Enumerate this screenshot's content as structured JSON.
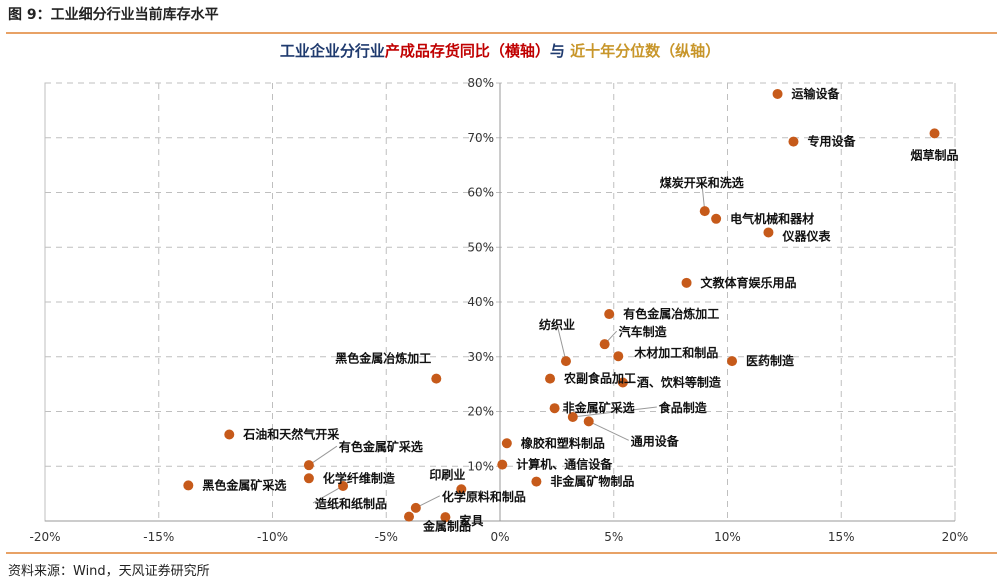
{
  "figure_title": "图 9：工业细分行业当前库存水平",
  "source": "资料来源：Wind，天风证券研究所",
  "colors": {
    "point": "#c65a1a",
    "title_blue": "#1f3a6e",
    "title_red": "#c00000",
    "title_gold": "#c8962a",
    "grid": "#bfbfbf",
    "rule": "#e8a266"
  },
  "chart_data": {
    "type": "scatter",
    "title_parts": [
      {
        "text": "工业企业分行业",
        "color": "#1f3a6e"
      },
      {
        "text": "产成品存货同比（横轴）",
        "color": "#c00000"
      },
      {
        "text": "与 ",
        "color": "#1f3a6e"
      },
      {
        "text": "近十年分位数（纵轴）",
        "color": "#c8962a"
      }
    ],
    "xlim": [
      -20,
      20
    ],
    "ylim": [
      0,
      80
    ],
    "x_ticks": [
      "-20%",
      "-15%",
      "-10%",
      "-5%",
      "0%",
      "5%",
      "10%",
      "15%",
      "20%"
    ],
    "y_ticks": [
      "10%",
      "20%",
      "30%",
      "40%",
      "50%",
      "60%",
      "70%",
      "80%"
    ],
    "grid": true,
    "points": [
      {
        "name": "运输设备",
        "x": 12.2,
        "y": 78
      },
      {
        "name": "专用设备",
        "x": 12.9,
        "y": 69.3
      },
      {
        "name": "烟草制品",
        "x": 19.1,
        "y": 70.8
      },
      {
        "name": "煤炭开采和洗选",
        "x": 9.0,
        "y": 56.6
      },
      {
        "name": "电气机械和器材",
        "x": 9.5,
        "y": 55.2
      },
      {
        "name": "仪器仪表",
        "x": 11.8,
        "y": 52.7
      },
      {
        "name": "文教体育娱乐用品",
        "x": 8.2,
        "y": 43.5
      },
      {
        "name": "有色金属冶炼加工",
        "x": 4.8,
        "y": 37.8
      },
      {
        "name": "纺织业",
        "x": 2.9,
        "y": 29.2
      },
      {
        "name": "汽车制造",
        "x": 4.6,
        "y": 32.3
      },
      {
        "name": "木材加工和制品",
        "x": 5.2,
        "y": 30.1
      },
      {
        "name": "医药制造",
        "x": 10.2,
        "y": 29.2
      },
      {
        "name": "黑色金属冶炼加工",
        "x": -2.8,
        "y": 26.0
      },
      {
        "name": "农副食品加工",
        "x": 2.2,
        "y": 26.0
      },
      {
        "name": "酒、饮料等制造",
        "x": 5.4,
        "y": 25.3
      },
      {
        "name": "非金属矿采选",
        "x": 2.4,
        "y": 20.6
      },
      {
        "name": "食品制造",
        "x": 3.2,
        "y": 19.0
      },
      {
        "name": "通用设备",
        "x": 3.9,
        "y": 18.2
      },
      {
        "name": "石油和天然气开采",
        "x": -11.9,
        "y": 15.8
      },
      {
        "name": "橡胶和塑料制品",
        "x": 0.3,
        "y": 14.2
      },
      {
        "name": "有色金属矿采选",
        "x": -8.4,
        "y": 10.2
      },
      {
        "name": "计算机、通信设备",
        "x": 0.1,
        "y": 10.3
      },
      {
        "name": "化学纤维制造",
        "x": -8.4,
        "y": 7.8
      },
      {
        "name": "非金属矿物制品",
        "x": 1.6,
        "y": 7.2
      },
      {
        "name": "黑色金属矿采选",
        "x": -13.7,
        "y": 6.5
      },
      {
        "name": "造纸和纸制品",
        "x": -6.9,
        "y": 6.4
      },
      {
        "name": "印刷业",
        "x": -1.7,
        "y": 5.8
      },
      {
        "name": "化学原料和制品",
        "x": -3.7,
        "y": 2.4
      },
      {
        "name": "家具",
        "x": -2.4,
        "y": 0.7
      },
      {
        "name": "金属制品",
        "x": -4.0,
        "y": 0.8
      }
    ]
  }
}
